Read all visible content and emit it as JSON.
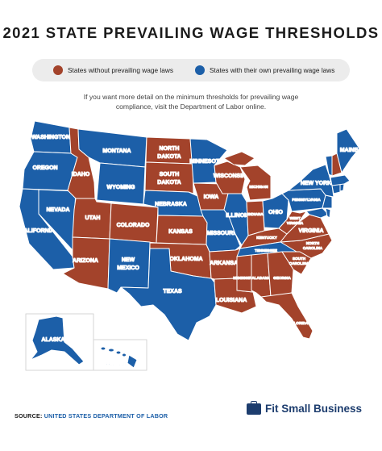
{
  "title": "2021 STATE PREVAILING WAGE THRESHOLDS",
  "legend": {
    "without_label": "States without prevailing wage laws",
    "with_label": "States with their own prevailing wage laws"
  },
  "colors": {
    "without": "#a3432b",
    "with": "#1c5fa8",
    "border": "#ffffff"
  },
  "note": "If you want more detail on the minimum thresholds for prevailing wage compliance, visit the Department of Labor online.",
  "states": {
    "wa": "WASHINGTON",
    "or": "OREGON",
    "ca": "CALIFORNIA",
    "nv": "NEVADA",
    "id": "IDAHO",
    "mt": "MONTANA",
    "wy": "WYOMING",
    "ut": "UTAH",
    "co": "COLORADO",
    "az": "ARIZONA",
    "nm_1": "NEW",
    "nm_2": "MEXICO",
    "nd_1": "NORTH",
    "nd_2": "DAKOTA",
    "sd_1": "SOUTH",
    "sd_2": "DAKOTA",
    "ne": "NEBRASKA",
    "ks": "KANSAS",
    "ok": "OKLAHOMA",
    "tx": "TEXAS",
    "mn": "MINNESOTA",
    "ia": "IOWA",
    "mo": "MISSOURI",
    "ar": "ARKANSAS",
    "la": "LOUISIANA",
    "wi": "WISCONSIN",
    "il": "ILLINOIS",
    "mi": "MICHIGAN",
    "in": "INDIANA",
    "oh": "OHIO",
    "ky": "KENTUCKY",
    "tn": "TENNESSEE",
    "ms": "MISSISSIPPI",
    "al": "ALABAMA",
    "ga": "GEORGIA",
    "fl": "FLORIDA",
    "sc_1": "SOUTH",
    "sc_2": "CAROLINA",
    "nc_1": "NORTH",
    "nc_2": "CAROLINA",
    "va": "VIRGINIA",
    "wv_1": "WEST",
    "wv_2": "VIRGINIA",
    "pa": "PENNSYLVANIA",
    "ny": "NEW YORK",
    "me": "MAINE",
    "ak": "ALASKA",
    "hi": "HAWAII"
  },
  "source": {
    "label": "SOURCE:",
    "value": "UNITED STATES DEPARTMENT OF LABOR"
  },
  "brand": {
    "name": "Fit Small Business",
    "icon": "briefcase-icon"
  }
}
